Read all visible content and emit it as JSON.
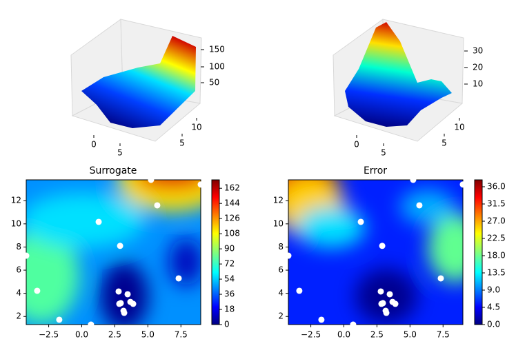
{
  "chart_data": [
    {
      "type": "surface",
      "xticks": [
        0,
        5
      ],
      "yticks": [
        5,
        10
      ],
      "zticks": [
        50,
        100,
        150
      ]
    },
    {
      "type": "surface",
      "xticks": [
        0,
        5
      ],
      "yticks": [
        5,
        10
      ],
      "zticks": [
        10,
        20,
        30
      ]
    },
    {
      "type": "contour",
      "title": "Surrogate",
      "xlim": [
        -4.2,
        9.0
      ],
      "ylim": [
        1.3,
        13.8
      ],
      "xticks": [
        {
          "value": -2.5,
          "label": "−2.5"
        },
        {
          "value": 0,
          "label": "0.0"
        },
        2.5,
        {
          "value": 5,
          "label": "5.0"
        },
        7.5
      ],
      "yticks": [
        2,
        4,
        6,
        8,
        10,
        12
      ],
      "points": {
        "color": "#ffffff",
        "x": [
          5.24,
          9.0,
          5.71,
          1.28,
          2.9,
          -4.2,
          7.33,
          -3.37,
          2.79,
          3.47,
          2.95,
          2.84,
          3.68,
          3.89,
          3.16,
          3.21,
          -1.7,
          0.7
        ],
        "y": [
          13.8,
          13.4,
          11.6,
          10.17,
          8.1,
          7.25,
          5.29,
          4.22,
          4.16,
          3.92,
          3.15,
          3.09,
          3.26,
          3.09,
          2.49,
          2.31,
          1.72,
          1.3
        ]
      },
      "colorbar": {
        "lim": [
          0,
          172
        ],
        "ticks": [
          0,
          18,
          36,
          54,
          72,
          90,
          108,
          126,
          144,
          162
        ]
      }
    },
    {
      "type": "contour",
      "title": "Error",
      "xlim": [
        -4.2,
        9.0
      ],
      "ylim": [
        1.3,
        13.8
      ],
      "xticks": [
        {
          "value": -2.5,
          "label": "−2.5"
        },
        {
          "value": 0,
          "label": "0.0"
        },
        2.5,
        {
          "value": 5,
          "label": "5.0"
        },
        7.5
      ],
      "yticks": [
        2,
        4,
        6,
        8,
        10,
        12
      ],
      "points": {
        "color": "#ffffff",
        "x": [
          5.24,
          9.0,
          5.71,
          1.28,
          2.9,
          -4.2,
          7.33,
          -3.37,
          2.79,
          3.47,
          2.95,
          2.84,
          3.68,
          3.89,
          3.16,
          3.21,
          -1.7,
          0.7
        ],
        "y": [
          13.8,
          13.4,
          11.6,
          10.17,
          8.1,
          7.25,
          5.29,
          4.22,
          4.16,
          3.92,
          3.15,
          3.09,
          3.26,
          3.09,
          2.49,
          2.31,
          1.72,
          1.3
        ]
      },
      "colorbar": {
        "lim": [
          0,
          37.8
        ],
        "ticks": [
          {
            "value": 0,
            "label": "0.0"
          },
          4.5,
          {
            "value": 9,
            "label": "9.0"
          },
          13.5,
          {
            "value": 18,
            "label": "18.0"
          },
          22.5,
          {
            "value": 27,
            "label": "27.0"
          },
          31.5,
          {
            "value": 36,
            "label": "36.0"
          }
        ]
      }
    }
  ]
}
